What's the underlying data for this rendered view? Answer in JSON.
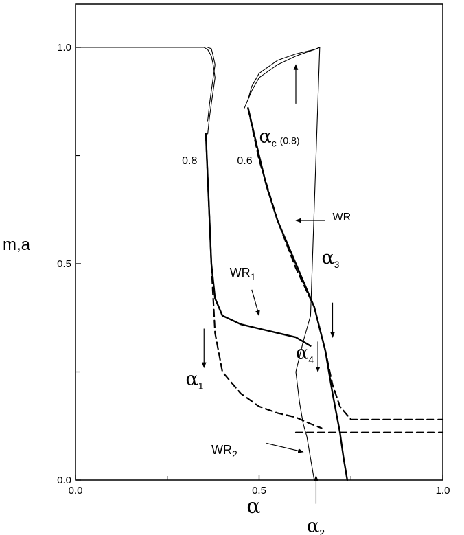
{
  "chart_data": {
    "type": "line",
    "xlabel": "α",
    "ylabel": "m,a",
    "xlim": [
      0.0,
      1.0
    ],
    "ylim": [
      0.0,
      1.1
    ],
    "x_tick_labels": [
      {
        "value": 0.0,
        "label": "0.0"
      },
      {
        "value": 0.5,
        "label": "0.5"
      },
      {
        "value": 1.0,
        "label": "1.0"
      }
    ],
    "y_tick_labels": [
      {
        "value": 0.0,
        "label": "0.0"
      },
      {
        "value": 0.5,
        "label": "0.5"
      },
      {
        "value": 1.0,
        "label": "1.0"
      }
    ],
    "minor_ticks": [
      0.25,
      0.75
    ],
    "grid": false,
    "series": [
      {
        "style": "thin-solid",
        "x": [
          0.0,
          0.35,
          0.36,
          0.37,
          0.375,
          0.38,
          0.375,
          0.37,
          0.365,
          0.36
        ],
        "y": [
          1.0,
          1.0,
          0.995,
          0.98,
          0.96,
          0.93,
          0.9,
          0.87,
          0.84,
          0.8
        ]
      },
      {
        "style": "thin-solid",
        "x": [
          0.36,
          0.37,
          0.375,
          0.38,
          0.375,
          0.37,
          0.365,
          0.36
        ],
        "y": [
          1.0,
          0.997,
          0.98,
          0.96,
          0.93,
          0.9,
          0.87,
          0.83
        ]
      },
      {
        "style": "thick-solid",
        "x": [
          0.355,
          0.36,
          0.365,
          0.37,
          0.38,
          0.4,
          0.45,
          0.5,
          0.55,
          0.6,
          0.62,
          0.64
        ],
        "y": [
          0.8,
          0.7,
          0.6,
          0.5,
          0.42,
          0.38,
          0.36,
          0.35,
          0.34,
          0.33,
          0.32,
          0.31
        ]
      },
      {
        "style": "dashed",
        "x": [
          0.355,
          0.36,
          0.365,
          0.37,
          0.375,
          0.38,
          0.4,
          0.45,
          0.5,
          0.55,
          0.6,
          0.64,
          0.67
        ],
        "y": [
          0.8,
          0.7,
          0.6,
          0.5,
          0.42,
          0.34,
          0.25,
          0.2,
          0.17,
          0.155,
          0.145,
          0.13,
          0.12
        ]
      },
      {
        "style": "thin-solid",
        "x": [
          0.46,
          0.48,
          0.5,
          0.55,
          0.6,
          0.65,
          0.665,
          0.64,
          0.62,
          0.6,
          0.61,
          0.62,
          0.63,
          0.64,
          0.65
        ],
        "y": [
          0.86,
          0.9,
          0.93,
          0.96,
          0.98,
          0.995,
          1.0,
          0.38,
          0.32,
          0.25,
          0.18,
          0.13,
          0.1,
          0.05,
          0.0
        ]
      },
      {
        "style": "thin-solid",
        "x": [
          0.47,
          0.48,
          0.5,
          0.55,
          0.6,
          0.65,
          0.665
        ],
        "y": [
          0.88,
          0.91,
          0.94,
          0.97,
          0.985,
          0.995,
          1.0
        ]
      },
      {
        "style": "thick-solid",
        "x": [
          0.47,
          0.5,
          0.52,
          0.55,
          0.6,
          0.65,
          0.68,
          0.7,
          0.72,
          0.73,
          0.74
        ],
        "y": [
          0.86,
          0.75,
          0.68,
          0.6,
          0.5,
          0.4,
          0.3,
          0.2,
          0.11,
          0.05,
          0.0
        ]
      },
      {
        "style": "dashed",
        "x": [
          0.47,
          0.5,
          0.55,
          0.6,
          0.65,
          0.68,
          0.7,
          0.72,
          0.75,
          1.0
        ],
        "y": [
          0.86,
          0.74,
          0.6,
          0.49,
          0.4,
          0.3,
          0.22,
          0.17,
          0.14,
          0.14
        ]
      },
      {
        "style": "dashed",
        "x": [
          0.6,
          1.0
        ],
        "y": [
          0.11,
          0.11
        ]
      }
    ],
    "annotations": [
      {
        "text": "α",
        "sub": "c",
        "extra": "(0.8)",
        "x": 0.5,
        "y": 0.78
      },
      {
        "text": "0.8",
        "x": 0.29,
        "y": 0.73
      },
      {
        "text": "0.6",
        "x": 0.44,
        "y": 0.73
      },
      {
        "text": "WR",
        "x": 0.7,
        "y": 0.6
      },
      {
        "text": "WR",
        "sub": "1",
        "x": 0.42,
        "y": 0.47
      },
      {
        "text": "α",
        "sub": "3",
        "x": 0.67,
        "y": 0.5
      },
      {
        "text": "α",
        "sub": "4",
        "x": 0.6,
        "y": 0.28
      },
      {
        "text": "α",
        "sub": "1",
        "x": 0.3,
        "y": 0.22
      },
      {
        "text": "WR",
        "sub": "2",
        "x": 0.37,
        "y": 0.06
      },
      {
        "text": "α",
        "sub": "2",
        "x": 0.63,
        "y": -0.12
      }
    ],
    "arrows": [
      {
        "from": [
          0.6,
          0.87
        ],
        "to": [
          0.6,
          0.96
        ]
      },
      {
        "from": [
          0.68,
          0.6
        ],
        "to": [
          0.6,
          0.6
        ]
      },
      {
        "from": [
          0.48,
          0.44
        ],
        "to": [
          0.5,
          0.38
        ]
      },
      {
        "from": [
          0.7,
          0.41
        ],
        "to": [
          0.7,
          0.33
        ]
      },
      {
        "from": [
          0.66,
          0.32
        ],
        "to": [
          0.66,
          0.25
        ]
      },
      {
        "from": [
          0.35,
          0.35
        ],
        "to": [
          0.35,
          0.26
        ]
      },
      {
        "from": [
          0.52,
          0.085
        ],
        "to": [
          0.62,
          0.065
        ]
      },
      {
        "from": [
          0.655,
          -0.055
        ],
        "to": [
          0.655,
          0.01
        ]
      }
    ]
  }
}
